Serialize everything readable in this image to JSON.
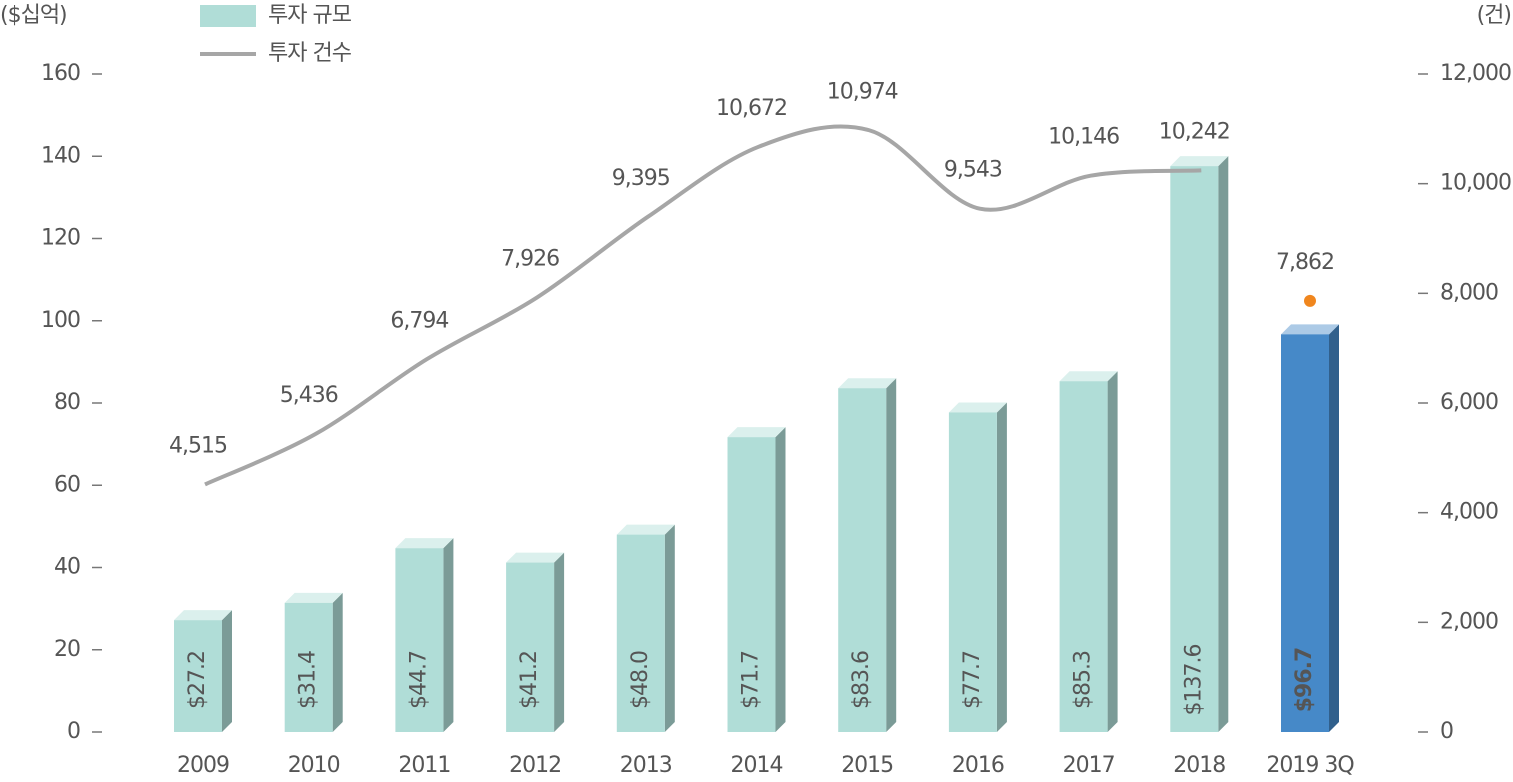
{
  "chart_data": {
    "type": "bar-line",
    "y_label": "($십억)",
    "y2_label": "(건)",
    "categories": [
      "2009",
      "2010",
      "2011",
      "2012",
      "2013",
      "2014",
      "2015",
      "2016",
      "2017",
      "2018",
      "2019 3Q"
    ],
    "series": [
      {
        "name": "투자 규모",
        "type": "bar",
        "color": "#b0ddd7",
        "highlight_color": "#4689c8",
        "values": [
          27.2,
          31.4,
          44.7,
          41.2,
          48.0,
          71.7,
          83.6,
          77.7,
          85.3,
          137.6,
          96.7
        ],
        "value_labels": [
          "$27.2",
          "$31.4",
          "$44.7",
          "$41.2",
          "$48.0",
          "$71.7",
          "$83.6",
          "$77.7",
          "$85.3",
          "$137.6",
          "$96.7"
        ]
      },
      {
        "name": "투자 건수",
        "type": "line",
        "axis": "y2",
        "color": "#a6a6a6",
        "highlight_color": "#f0861e",
        "values": [
          4515,
          5436,
          6794,
          7926,
          9395,
          10672,
          10974,
          9543,
          10146,
          10242,
          7862
        ],
        "value_labels": [
          "4,515",
          "5,436",
          "6,794",
          "7,926",
          "9,395",
          "10,672",
          "10,974",
          "9,543",
          "10,146",
          "10,242",
          "7,862"
        ]
      }
    ],
    "highlight_index": 10,
    "ylim": [
      0,
      160
    ],
    "yticks": [
      0,
      20,
      40,
      60,
      80,
      100,
      120,
      140,
      160
    ],
    "y2lim": [
      0,
      12000
    ],
    "y2ticks": [
      0,
      {
        "value": 2000,
        "label": "2,000"
      },
      {
        "value": 4000,
        "label": "4,000"
      },
      {
        "value": 6000,
        "label": "6,000"
      },
      {
        "value": 8000,
        "label": "8,000"
      },
      {
        "value": 10000,
        "label": "10,000"
      },
      {
        "value": 12000,
        "label": "12,000"
      }
    ],
    "legend": "top-left"
  }
}
